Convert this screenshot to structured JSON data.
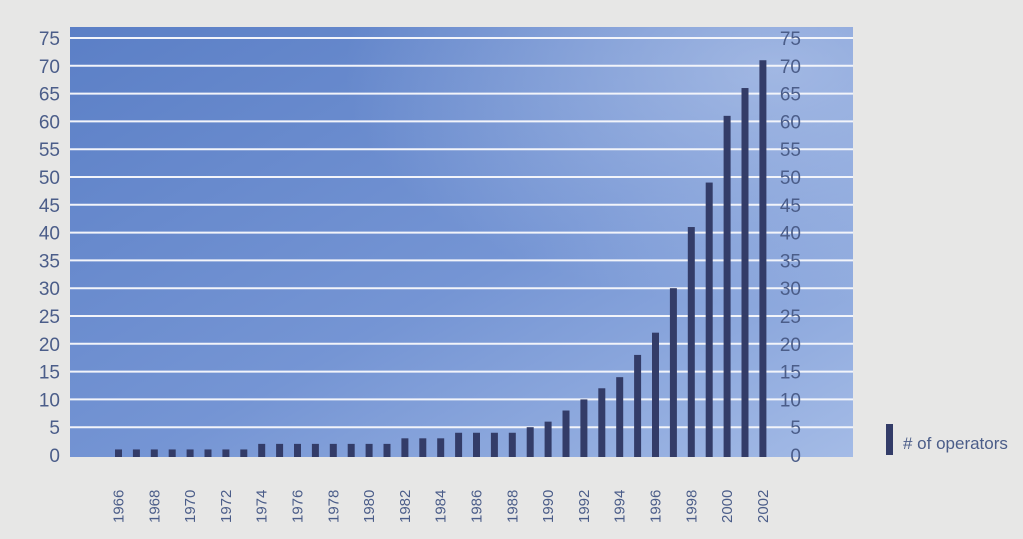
{
  "chart_data": {
    "type": "bar",
    "title": "",
    "xlabel": "",
    "ylabel": "",
    "ylim": [
      0,
      75
    ],
    "yticks": [
      0,
      5,
      10,
      15,
      20,
      25,
      30,
      35,
      40,
      45,
      50,
      55,
      60,
      65,
      70,
      75
    ],
    "grid": true,
    "legend_position": "bottom-right",
    "categories": [
      "1966",
      "1967",
      "1968",
      "1969",
      "1970",
      "1971",
      "1972",
      "1973",
      "1974",
      "1975",
      "1976",
      "1977",
      "1978",
      "1979",
      "1980",
      "1981",
      "1982",
      "1983",
      "1984",
      "1985",
      "1986",
      "1987",
      "1988",
      "1989",
      "1990",
      "1991",
      "1992",
      "1993",
      "1994",
      "1995",
      "1996",
      "1997",
      "1998",
      "1999",
      "2000",
      "2001",
      "2002"
    ],
    "x_tick_labels": [
      "1966",
      "1968",
      "1970",
      "1972",
      "1974",
      "1976",
      "1978",
      "1980",
      "1982",
      "1984",
      "1986",
      "1988",
      "1990",
      "1992",
      "1994",
      "1996",
      "1998",
      "2000",
      "2002"
    ],
    "series": [
      {
        "name": "# of operators",
        "color": "#333c68",
        "values": [
          1,
          1,
          1,
          1,
          1,
          1,
          1,
          1,
          2,
          2,
          2,
          2,
          2,
          2,
          2,
          2,
          3,
          3,
          3,
          4,
          4,
          4,
          4,
          5,
          6,
          8,
          10,
          12,
          14,
          18,
          22,
          30,
          41,
          49,
          61,
          66,
          71
        ]
      }
    ],
    "colors": {
      "plot_top": "#5f82c9",
      "plot_bottom": "#8eaae0",
      "gridline": "#f2f4fa",
      "bar": "#333c68",
      "text": "#4b5d89",
      "page": "#e7e7e6"
    }
  }
}
